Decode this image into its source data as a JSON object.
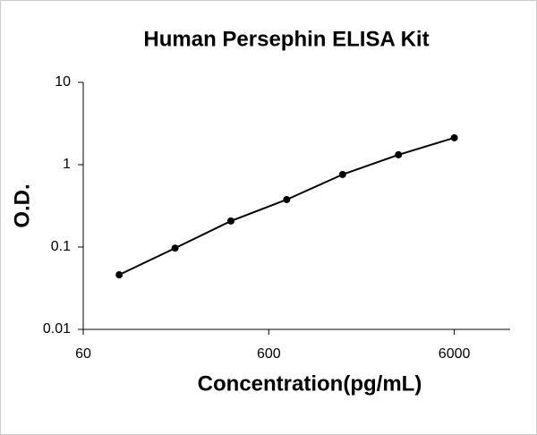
{
  "chart_data": {
    "type": "line",
    "title": "Human Persephin ELISA Kit",
    "x_label": "Concentration(pg/mL)",
    "y_label": "O.D.",
    "x": [
      93.75,
      187.5,
      375,
      750,
      1500,
      3000,
      6000
    ],
    "values": [
      0.046,
      0.097,
      0.207,
      0.377,
      0.76,
      1.32,
      2.12
    ],
    "color": "#000000",
    "markers": true,
    "xscale": "log",
    "yscale": "log",
    "xlim": [
      60,
      12000
    ],
    "ylim": [
      0.01,
      10
    ],
    "xticks": [
      60,
      600,
      6000
    ],
    "yticks": [
      0.01,
      0.1,
      1,
      10
    ],
    "grid": false
  }
}
